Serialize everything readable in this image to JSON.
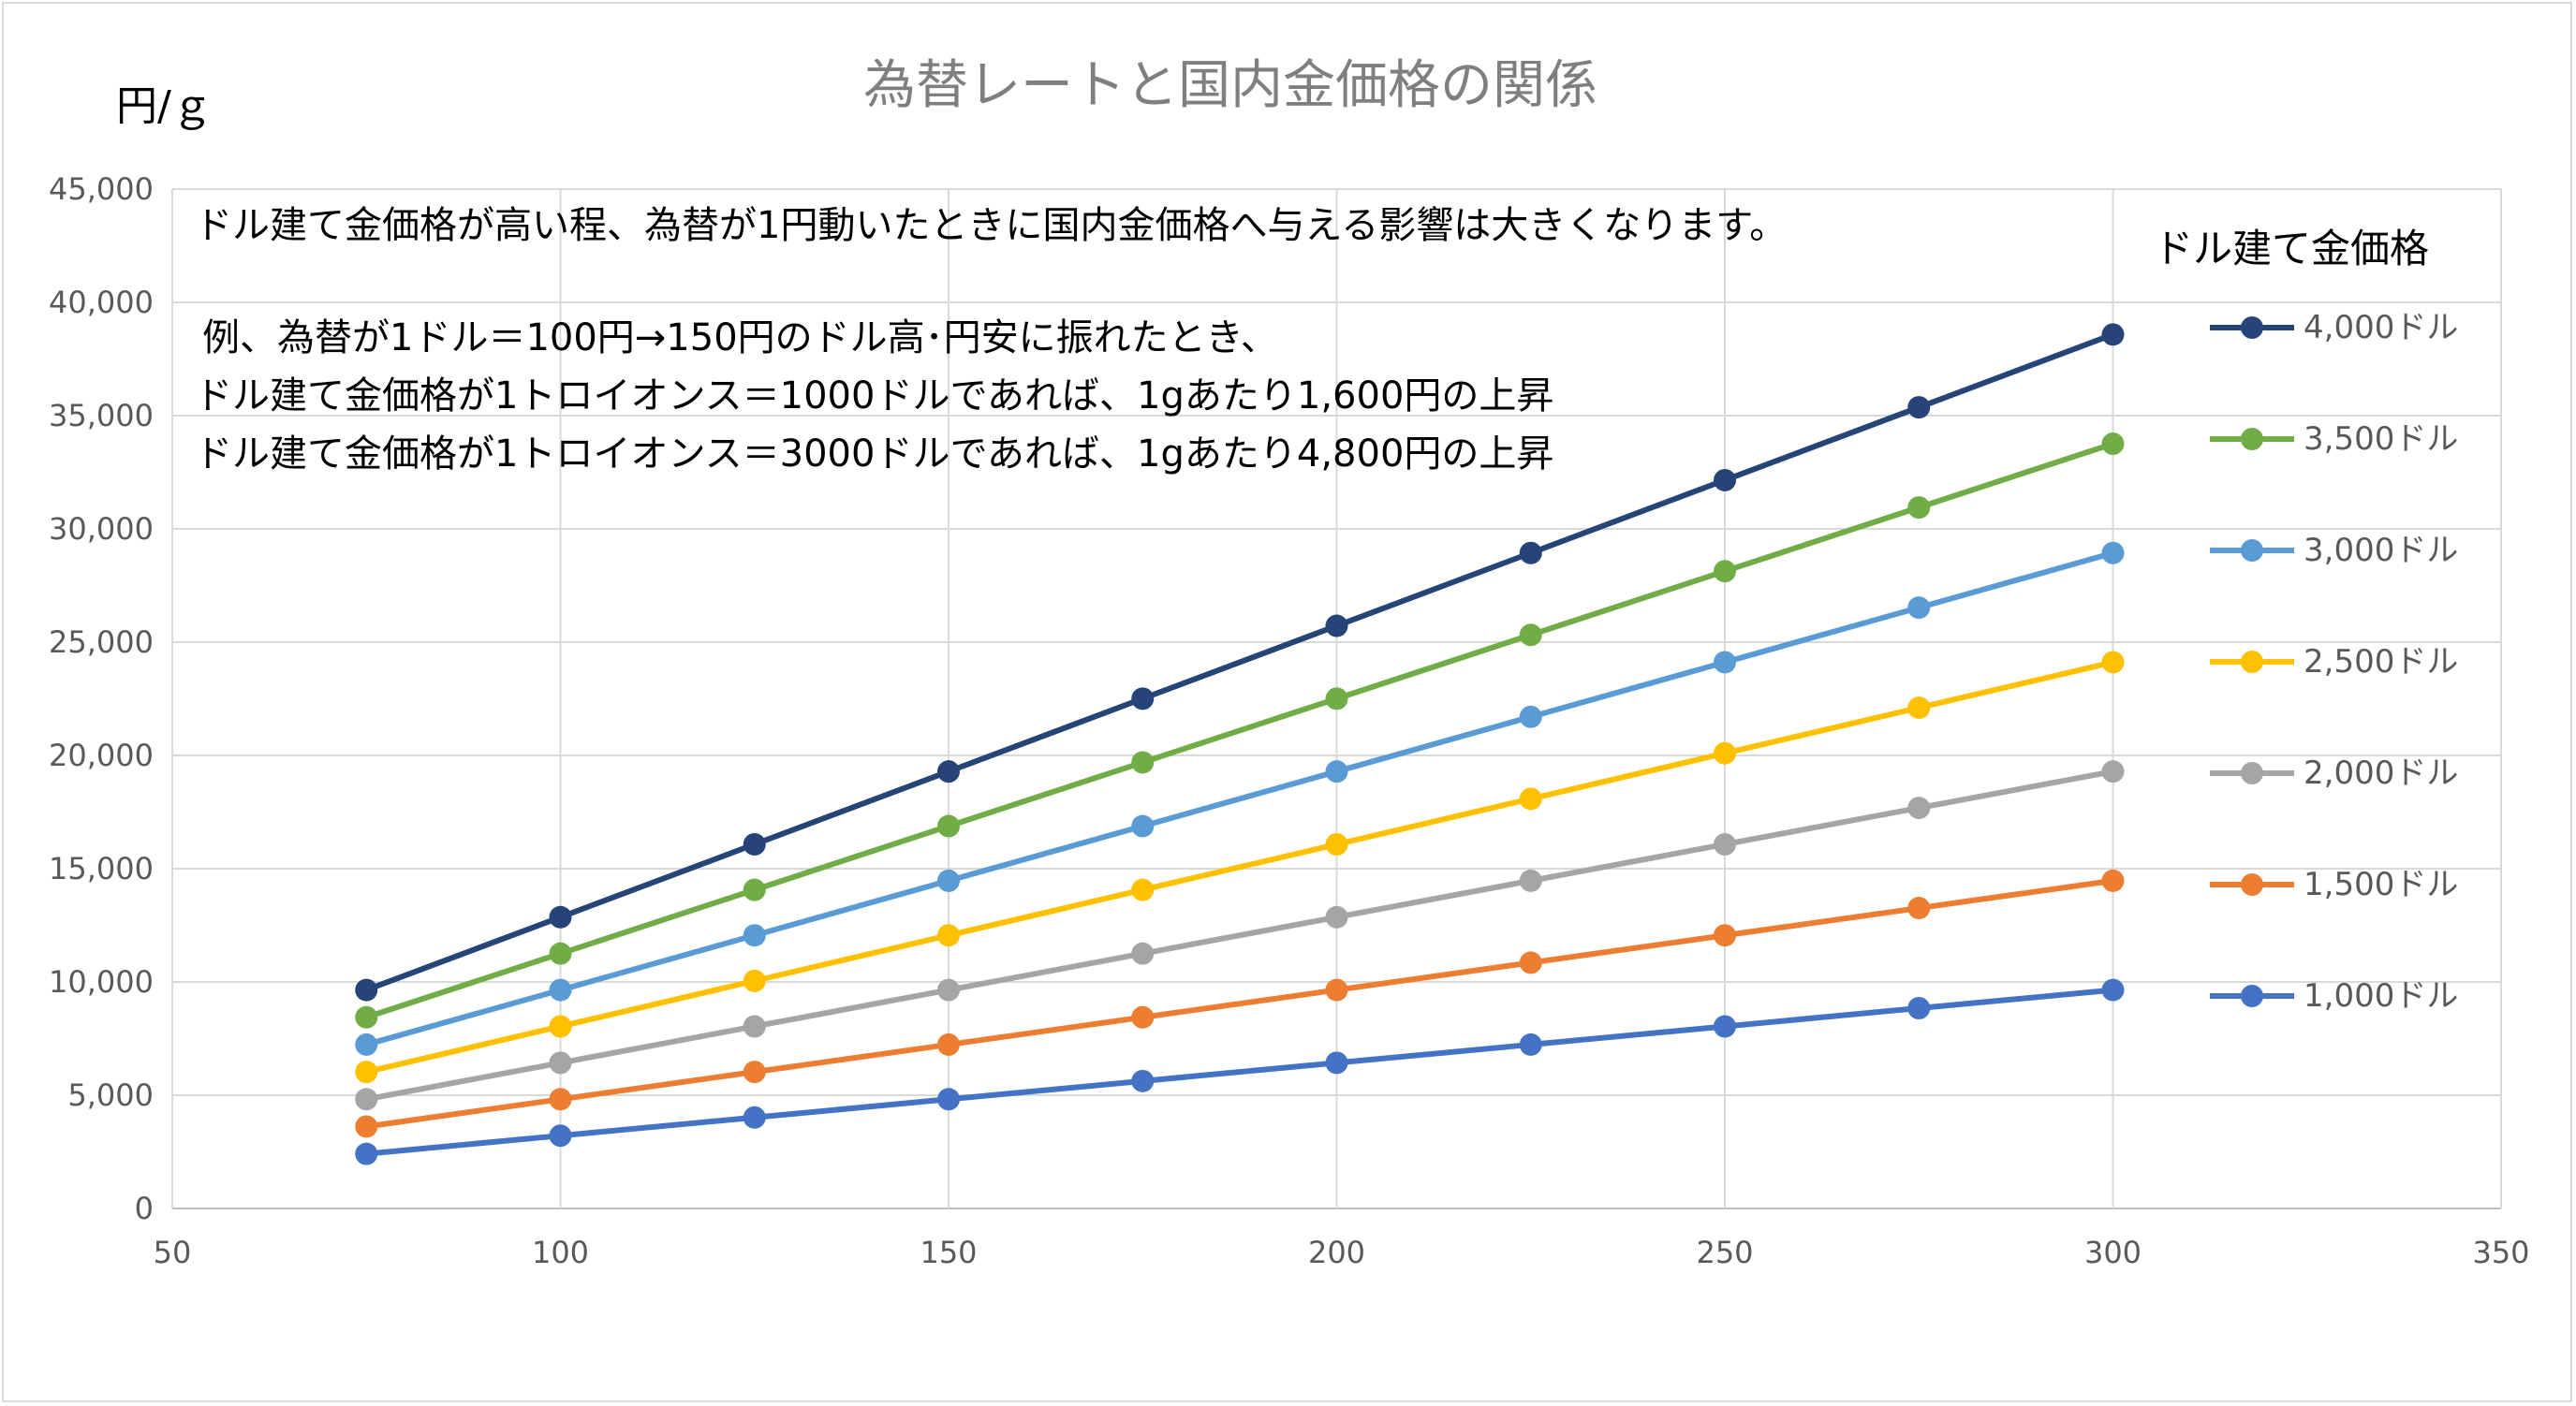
{
  "chart_data": {
    "type": "line",
    "title": "為替レートと国内金価格の関係",
    "ylabel": "円/ｇ",
    "xlabel": "",
    "xlim": [
      50,
      350
    ],
    "ylim": [
      0,
      45000
    ],
    "x_ticks": [
      "50",
      "100",
      "150",
      "200",
      "250",
      "300",
      "350"
    ],
    "y_ticks": [
      "0",
      "5,000",
      "10,000",
      "15,000",
      "20,000",
      "25,000",
      "30,000",
      "35,000",
      "40,000",
      "45,000"
    ],
    "x_tick_values": [
      50,
      100,
      150,
      200,
      250,
      300,
      350
    ],
    "y_tick_values": [
      0,
      5000,
      10000,
      15000,
      20000,
      25000,
      30000,
      35000,
      40000,
      45000
    ],
    "grid": true,
    "x": [
      75,
      100,
      125,
      150,
      175,
      200,
      225,
      250,
      275,
      300
    ],
    "legend_title": "ドル建て金価格",
    "legend_position": "right",
    "annotations": [
      "ドル建て金価格が高い程、為替が1円動いたときに国内金価格へ与える影響は大きくなります。",
      "例、為替が1ドル＝100円→150円のドル高･円安に振れたとき、",
      "ドル建て金価格が1トロイオンス＝1000ドルであれば、1gあたり1,600円の上昇",
      "ドル建て金価格が1トロイオンス＝3000ドルであれば、1gあたり4,800円の上昇"
    ],
    "series": [
      {
        "name": "4,000ドル",
        "color": "#264478",
        "values": [
          9645,
          12860,
          16075,
          19290,
          22506,
          25721,
          28936,
          32151,
          35366,
          38581
        ]
      },
      {
        "name": "3,500ドル",
        "color": "#70AD47",
        "values": [
          8440,
          11253,
          14066,
          16879,
          19692,
          22506,
          25319,
          28132,
          30945,
          33758
        ]
      },
      {
        "name": "3,000ドル",
        "color": "#5B9BD5",
        "values": [
          7234,
          9645,
          12057,
          14468,
          16879,
          19290,
          21702,
          24113,
          26524,
          28936
        ]
      },
      {
        "name": "2,500ドル",
        "color": "#FFC000",
        "values": [
          6028,
          8038,
          10047,
          12057,
          14066,
          16075,
          18085,
          20094,
          22104,
          24113
        ]
      },
      {
        "name": "2,000ドル",
        "color": "#A5A5A5",
        "values": [
          4823,
          6430,
          8038,
          9645,
          11253,
          12860,
          14468,
          16075,
          17683,
          19290
        ]
      },
      {
        "name": "1,500ドル",
        "color": "#ED7D31",
        "values": [
          3617,
          4823,
          6028,
          7234,
          8440,
          9645,
          10851,
          12057,
          13262,
          14468
        ]
      },
      {
        "name": "1,000ドル",
        "color": "#4472C4",
        "values": [
          2411,
          3215,
          4019,
          4823,
          5627,
          6430,
          7234,
          8038,
          8842,
          9645
        ]
      }
    ]
  }
}
